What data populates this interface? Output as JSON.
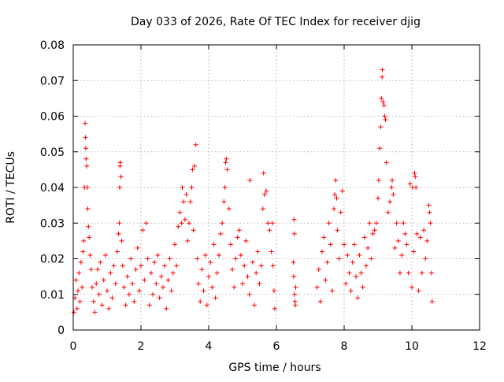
{
  "chart_data": {
    "type": "scatter",
    "title": "Day 033 of 2026, Rate Of TEC Index for receiver djig",
    "xlabel": "GPS time / hours",
    "ylabel": "ROTI / TECUs",
    "xlim": [
      0,
      12
    ],
    "ylim": [
      0,
      0.08
    ],
    "x_ticks": [
      0,
      2,
      4,
      6,
      8,
      10,
      12
    ],
    "y_ticks": [
      0,
      0.01,
      0.02,
      0.03,
      0.04,
      0.05,
      0.06,
      0.07,
      0.08
    ],
    "x_tick_labels": [
      "0",
      "2",
      "4",
      "6",
      "8",
      "10",
      "12"
    ],
    "y_tick_labels": [
      "0",
      "0.01",
      "0.02",
      "0.03",
      "0.04",
      "0.05",
      "0.06",
      "0.07",
      "0.08"
    ],
    "grid": true,
    "marker": "+",
    "series": [
      {
        "name": "ROTI",
        "color": "#ff0000",
        "points": [
          [
            0.02,
            0.005
          ],
          [
            0.05,
            0.009
          ],
          [
            0.08,
            0.014
          ],
          [
            0.11,
            0.006
          ],
          [
            0.14,
            0.011
          ],
          [
            0.17,
            0.016
          ],
          [
            0.2,
            0.008
          ],
          [
            0.23,
            0.019
          ],
          [
            0.26,
            0.012
          ],
          [
            0.29,
            0.022
          ],
          [
            0.31,
            0.025
          ],
          [
            0.33,
            0.04
          ],
          [
            0.35,
            0.058
          ],
          [
            0.36,
            0.054
          ],
          [
            0.37,
            0.051
          ],
          [
            0.38,
            0.048
          ],
          [
            0.4,
            0.046
          ],
          [
            0.41,
            0.04
          ],
          [
            0.43,
            0.034
          ],
          [
            0.45,
            0.029
          ],
          [
            0.47,
            0.026
          ],
          [
            0.5,
            0.021
          ],
          [
            0.53,
            0.017
          ],
          [
            0.56,
            0.012
          ],
          [
            0.6,
            0.008
          ],
          [
            0.64,
            0.005
          ],
          [
            0.68,
            0.013
          ],
          [
            0.72,
            0.017
          ],
          [
            0.76,
            0.01
          ],
          [
            0.8,
            0.019
          ],
          [
            0.85,
            0.007
          ],
          [
            0.9,
            0.014
          ],
          [
            0.95,
            0.021
          ],
          [
            1.0,
            0.011
          ],
          [
            1.05,
            0.006
          ],
          [
            1.1,
            0.016
          ],
          [
            1.15,
            0.009
          ],
          [
            1.2,
            0.018
          ],
          [
            1.25,
            0.013
          ],
          [
            1.3,
            0.022
          ],
          [
            1.34,
            0.027
          ],
          [
            1.36,
            0.03
          ],
          [
            1.37,
            0.04
          ],
          [
            1.38,
            0.046
          ],
          [
            1.39,
            0.047
          ],
          [
            1.41,
            0.043
          ],
          [
            1.43,
            0.025
          ],
          [
            1.46,
            0.018
          ],
          [
            1.5,
            0.012
          ],
          [
            1.55,
            0.007
          ],
          [
            1.6,
            0.015
          ],
          [
            1.65,
            0.01
          ],
          [
            1.7,
            0.02
          ],
          [
            1.75,
            0.013
          ],
          [
            1.8,
            0.008
          ],
          [
            1.85,
            0.017
          ],
          [
            1.9,
            0.023
          ],
          [
            1.95,
            0.011
          ],
          [
            2.0,
            0.018
          ],
          [
            2.05,
            0.028
          ],
          [
            2.1,
            0.014
          ],
          [
            2.15,
            0.03
          ],
          [
            2.2,
            0.02
          ],
          [
            2.25,
            0.007
          ],
          [
            2.3,
            0.016
          ],
          [
            2.35,
            0.01
          ],
          [
            2.4,
            0.019
          ],
          [
            2.45,
            0.013
          ],
          [
            2.5,
            0.021
          ],
          [
            2.55,
            0.009
          ],
          [
            2.6,
            0.015
          ],
          [
            2.65,
            0.012
          ],
          [
            2.7,
            0.018
          ],
          [
            2.75,
            0.006
          ],
          [
            2.8,
            0.014
          ],
          [
            2.85,
            0.02
          ],
          [
            2.9,
            0.011
          ],
          [
            2.95,
            0.016
          ],
          [
            3.0,
            0.024
          ],
          [
            3.05,
            0.018
          ],
          [
            3.1,
            0.029
          ],
          [
            3.15,
            0.033
          ],
          [
            3.2,
            0.03
          ],
          [
            3.22,
            0.04
          ],
          [
            3.26,
            0.036
          ],
          [
            3.3,
            0.031
          ],
          [
            3.34,
            0.038
          ],
          [
            3.38,
            0.025
          ],
          [
            3.42,
            0.03
          ],
          [
            3.46,
            0.036
          ],
          [
            3.5,
            0.04
          ],
          [
            3.52,
            0.045
          ],
          [
            3.55,
            0.028
          ],
          [
            3.58,
            0.046
          ],
          [
            3.62,
            0.052
          ],
          [
            3.66,
            0.02
          ],
          [
            3.7,
            0.013
          ],
          [
            3.75,
            0.008
          ],
          [
            3.8,
            0.017
          ],
          [
            3.85,
            0.011
          ],
          [
            3.9,
            0.021
          ],
          [
            3.95,
            0.007
          ],
          [
            4.0,
            0.015
          ],
          [
            4.05,
            0.019
          ],
          [
            4.1,
            0.012
          ],
          [
            4.15,
            0.024
          ],
          [
            4.2,
            0.009
          ],
          [
            4.25,
            0.016
          ],
          [
            4.3,
            0.021
          ],
          [
            4.35,
            0.027
          ],
          [
            4.4,
            0.03
          ],
          [
            4.45,
            0.036
          ],
          [
            4.48,
            0.04
          ],
          [
            4.5,
            0.047
          ],
          [
            4.52,
            0.048
          ],
          [
            4.55,
            0.045
          ],
          [
            4.6,
            0.034
          ],
          [
            4.65,
            0.024
          ],
          [
            4.7,
            0.017
          ],
          [
            4.75,
            0.012
          ],
          [
            4.8,
            0.02
          ],
          [
            4.85,
            0.026
          ],
          [
            4.9,
            0.028
          ],
          [
            4.95,
            0.021
          ],
          [
            5.0,
            0.013
          ],
          [
            5.05,
            0.018
          ],
          [
            5.1,
            0.025
          ],
          [
            5.15,
            0.015
          ],
          [
            5.2,
            0.01
          ],
          [
            5.22,
            0.042
          ],
          [
            5.3,
            0.019
          ],
          [
            5.35,
            0.007
          ],
          [
            5.4,
            0.016
          ],
          [
            5.45,
            0.022
          ],
          [
            5.5,
            0.013
          ],
          [
            5.55,
            0.018
          ],
          [
            5.6,
            0.034
          ],
          [
            5.62,
            0.044
          ],
          [
            5.65,
            0.038
          ],
          [
            5.7,
            0.039
          ],
          [
            5.75,
            0.03
          ],
          [
            5.8,
            0.028
          ],
          [
            5.85,
            0.022
          ],
          [
            5.88,
            0.03
          ],
          [
            5.9,
            0.018
          ],
          [
            5.93,
            0.011
          ],
          [
            5.95,
            0.006
          ],
          [
            6.5,
            0.019
          ],
          [
            6.51,
            0.015
          ],
          [
            6.52,
            0.031
          ],
          [
            6.53,
            0.027
          ],
          [
            6.54,
            0.01
          ],
          [
            6.55,
            0.008
          ],
          [
            6.56,
            0.007
          ],
          [
            6.57,
            0.012
          ],
          [
            7.2,
            0.012
          ],
          [
            7.25,
            0.017
          ],
          [
            7.3,
            0.008
          ],
          [
            7.35,
            0.022
          ],
          [
            7.4,
            0.026
          ],
          [
            7.45,
            0.014
          ],
          [
            7.5,
            0.019
          ],
          [
            7.55,
            0.03
          ],
          [
            7.6,
            0.024
          ],
          [
            7.65,
            0.011
          ],
          [
            7.7,
            0.034
          ],
          [
            7.72,
            0.038
          ],
          [
            7.75,
            0.042
          ],
          [
            7.78,
            0.037
          ],
          [
            7.8,
            0.028
          ],
          [
            7.85,
            0.02
          ],
          [
            7.9,
            0.033
          ],
          [
            7.95,
            0.039
          ],
          [
            8.0,
            0.024
          ],
          [
            8.05,
            0.013
          ],
          [
            8.1,
            0.021
          ],
          [
            8.15,
            0.016
          ],
          [
            8.2,
            0.011
          ],
          [
            8.25,
            0.019
          ],
          [
            8.3,
            0.024
          ],
          [
            8.35,
            0.015
          ],
          [
            8.4,
            0.009
          ],
          [
            8.45,
            0.021
          ],
          [
            8.5,
            0.016
          ],
          [
            8.55,
            0.012
          ],
          [
            8.6,
            0.026
          ],
          [
            8.65,
            0.018
          ],
          [
            8.7,
            0.023
          ],
          [
            8.75,
            0.03
          ],
          [
            8.8,
            0.02
          ],
          [
            8.85,
            0.027
          ],
          [
            8.9,
            0.028
          ],
          [
            8.95,
            0.03
          ],
          [
            9.0,
            0.037
          ],
          [
            9.02,
            0.042
          ],
          [
            9.05,
            0.051
          ],
          [
            9.08,
            0.057
          ],
          [
            9.1,
            0.065
          ],
          [
            9.12,
            0.071
          ],
          [
            9.13,
            0.073
          ],
          [
            9.15,
            0.064
          ],
          [
            9.18,
            0.063
          ],
          [
            9.2,
            0.06
          ],
          [
            9.22,
            0.059
          ],
          [
            9.25,
            0.047
          ],
          [
            9.3,
            0.033
          ],
          [
            9.35,
            0.036
          ],
          [
            9.4,
            0.04
          ],
          [
            9.42,
            0.042
          ],
          [
            9.45,
            0.038
          ],
          [
            9.5,
            0.023
          ],
          [
            9.55,
            0.03
          ],
          [
            9.6,
            0.025
          ],
          [
            9.65,
            0.016
          ],
          [
            9.7,
            0.021
          ],
          [
            9.75,
            0.03
          ],
          [
            9.8,
            0.027
          ],
          [
            9.85,
            0.024
          ],
          [
            9.9,
            0.016
          ],
          [
            9.95,
            0.041
          ],
          [
            10.0,
            0.012
          ],
          [
            10.02,
            0.04
          ],
          [
            10.05,
            0.022
          ],
          [
            10.08,
            0.044
          ],
          [
            10.1,
            0.043
          ],
          [
            10.12,
            0.04
          ],
          [
            10.15,
            0.027
          ],
          [
            10.2,
            0.011
          ],
          [
            10.25,
            0.026
          ],
          [
            10.3,
            0.016
          ],
          [
            10.35,
            0.028
          ],
          [
            10.4,
            0.02
          ],
          [
            10.45,
            0.025
          ],
          [
            10.5,
            0.035
          ],
          [
            10.52,
            0.033
          ],
          [
            10.55,
            0.03
          ],
          [
            10.58,
            0.016
          ],
          [
            10.6,
            0.008
          ]
        ]
      }
    ]
  }
}
